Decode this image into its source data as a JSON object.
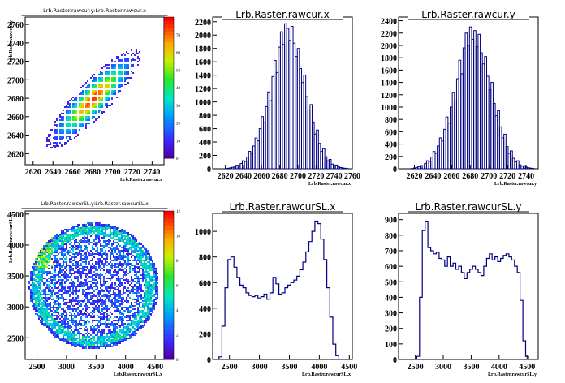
{
  "chart_data": [
    {
      "type": "heatmap",
      "title": "Lrb.Raster.rawcur.y:Lrb.Raster.rawcur.x",
      "xlabel": "Lrb.Raster.rawcur.x",
      "ylabel": "Lrb.Raster.rawcur.y",
      "xlim": [
        2612,
        2752
      ],
      "ylim": [
        2608,
        2768
      ],
      "xticks": [
        "2620",
        "2640",
        "2660",
        "2680",
        "2700",
        "2720",
        "2740"
      ],
      "yticks": [
        "2620",
        "2640",
        "2660",
        "2680",
        "2700",
        "2720",
        "2740",
        "2760"
      ],
      "zlim": [
        0,
        80
      ],
      "zticks": [
        "0",
        "10",
        "20",
        "30",
        "40",
        "50",
        "60",
        "70"
      ],
      "shape": "diagonal-ellipse",
      "center": [
        2680,
        2680
      ],
      "peak_z": 75
    },
    {
      "type": "bar",
      "title": "Lrb.Raster.rawcur.x",
      "xlabel": "Lrb.Raster.rawcur.x",
      "xlim": [
        2606,
        2760
      ],
      "ylim": [
        0,
        2270
      ],
      "xticks": [
        "2620",
        "2640",
        "2660",
        "2680",
        "2700",
        "2720",
        "2740",
        "2760"
      ],
      "yticks": [
        "0",
        "200",
        "400",
        "600",
        "800",
        "1000",
        "1200",
        "1400",
        "1600",
        "1800",
        "2000",
        "2200"
      ],
      "values": [
        0,
        0,
        0,
        0,
        0,
        0,
        4,
        8,
        14,
        22,
        34,
        52,
        50,
        78,
        120,
        110,
        175,
        260,
        230,
        340,
        460,
        420,
        600,
        780,
        690,
        930,
        1150,
        1020,
        1380,
        1620,
        1440,
        1820,
        2050,
        1860,
        2170,
        2100,
        1920,
        2130,
        1880,
        1680,
        1800,
        1500,
        1290,
        1400,
        1080,
        880,
        960,
        700,
        520,
        580,
        380,
        260,
        300,
        180,
        120,
        140,
        70,
        48,
        56,
        28,
        18,
        12,
        8,
        4,
        0,
        0
      ]
    },
    {
      "type": "bar",
      "title": "Lrb.Raster.rawcur.y",
      "xlabel": "Lrb.Raster.rawcur.y",
      "xlim": [
        2603,
        2753
      ],
      "ylim": [
        0,
        2460
      ],
      "xticks": [
        "2620",
        "2640",
        "2660",
        "2680",
        "2700",
        "2720",
        "2740"
      ],
      "yticks": [
        "0",
        "200",
        "400",
        "600",
        "800",
        "1000",
        "1200",
        "1400",
        "1600",
        "1800",
        "2000",
        "2200",
        "2400"
      ],
      "values": [
        0,
        0,
        0,
        0,
        0,
        0,
        6,
        12,
        22,
        34,
        52,
        48,
        84,
        130,
        118,
        190,
        280,
        250,
        370,
        500,
        450,
        640,
        840,
        740,
        1000,
        1240,
        1100,
        1460,
        1760,
        1540,
        1960,
        2200,
        2000,
        2300,
        2100,
        2240,
        1980,
        2180,
        1880,
        1700,
        1820,
        1500,
        1280,
        1400,
        1060,
        860,
        940,
        680,
        500,
        560,
        360,
        250,
        290,
        170,
        110,
        130,
        64,
        42,
        50,
        26,
        16,
        10,
        6,
        0,
        0
      ]
    },
    {
      "type": "heatmap",
      "title": "Lrb.Raster.rawcurSL.y:Lrb.Raster.rawcurSL.x",
      "xlabel": "Lrb.Raster.rawcurSL.x",
      "ylabel": "Lrb.Raster.rawcurSL.y",
      "xlim": [
        2300,
        4650
      ],
      "ylim": [
        2150,
        4550
      ],
      "xticks": [
        "2500",
        "3000",
        "3500",
        "4000",
        "4500"
      ],
      "yticks": [
        "2500",
        "3000",
        "3500",
        "4000",
        "4500"
      ],
      "zlim": [
        0,
        12
      ],
      "zticks": [
        "0",
        "2",
        "4",
        "6",
        "8",
        "10",
        "12"
      ],
      "shape": "disc",
      "center": [
        3450,
        3350
      ]
    },
    {
      "type": "line",
      "title": "Lrb.Raster.rawcurSL.x",
      "xlabel": "Lrb.Raster.rawcurSL.x",
      "xlim": [
        2220,
        4550
      ],
      "ylim": [
        0,
        1140
      ],
      "xticks": [
        "2500",
        "3000",
        "3500",
        "4000",
        "4500"
      ],
      "yticks": [
        "0",
        "200",
        "400",
        "600",
        "800",
        "1000"
      ],
      "x": [
        2350,
        2400,
        2450,
        2500,
        2550,
        2600,
        2650,
        2700,
        2750,
        2800,
        2850,
        2900,
        2950,
        3000,
        3050,
        3100,
        3150,
        3200,
        3250,
        3300,
        3350,
        3400,
        3450,
        3500,
        3550,
        3600,
        3650,
        3700,
        3750,
        3800,
        3850,
        3900,
        3950,
        4000,
        4050,
        4100,
        4150,
        4200,
        4250,
        4300
      ],
      "values": [
        20,
        260,
        560,
        780,
        800,
        720,
        640,
        580,
        560,
        520,
        500,
        490,
        500,
        480,
        490,
        510,
        470,
        520,
        640,
        590,
        510,
        520,
        560,
        580,
        600,
        620,
        650,
        700,
        760,
        840,
        920,
        1000,
        1080,
        1060,
        940,
        780,
        560,
        330,
        120,
        30
      ]
    },
    {
      "type": "line",
      "title": "Lrb.Raster.rawcurSL.y",
      "xlabel": "Lrb.Raster.rawcurSL.y",
      "xlim": [
        2200,
        4700
      ],
      "ylim": [
        0,
        940
      ],
      "xticks": [
        "2500",
        "3000",
        "3500",
        "4000",
        "4500"
      ],
      "yticks": [
        "0",
        "100",
        "200",
        "300",
        "400",
        "500",
        "600",
        "700",
        "800",
        "900"
      ],
      "x": [
        2550,
        2600,
        2650,
        2700,
        2750,
        2800,
        2850,
        2900,
        2950,
        3000,
        3050,
        3100,
        3150,
        3200,
        3250,
        3300,
        3350,
        3400,
        3450,
        3500,
        3550,
        3600,
        3650,
        3700,
        3750,
        3800,
        3850,
        3900,
        3950,
        4000,
        4050,
        4100,
        4150,
        4200,
        4250,
        4300,
        4350,
        4400,
        4450,
        4500
      ],
      "values": [
        20,
        400,
        830,
        890,
        720,
        700,
        680,
        690,
        650,
        640,
        600,
        660,
        600,
        620,
        580,
        600,
        560,
        520,
        560,
        580,
        600,
        580,
        560,
        540,
        600,
        650,
        680,
        640,
        660,
        630,
        650,
        670,
        680,
        660,
        640,
        600,
        560,
        380,
        120,
        20
      ]
    }
  ]
}
